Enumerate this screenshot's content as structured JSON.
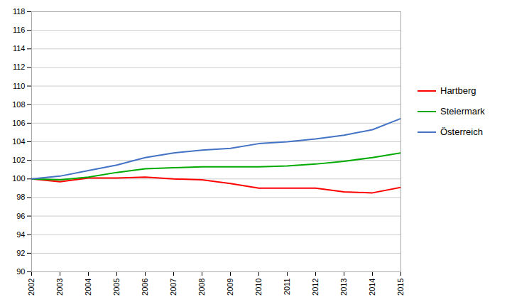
{
  "chart_data": {
    "type": "line",
    "x": [
      2002,
      2003,
      2004,
      2005,
      2006,
      2007,
      2008,
      2009,
      2010,
      2011,
      2012,
      2013,
      2014,
      2015
    ],
    "series": [
      {
        "name": "Hartberg",
        "color": "#ff0000",
        "values": [
          100.0,
          99.7,
          100.1,
          100.1,
          100.2,
          100.0,
          99.9,
          99.5,
          99.0,
          99.0,
          99.0,
          98.6,
          98.5,
          99.1
        ]
      },
      {
        "name": "Steiermark",
        "color": "#00aa00",
        "values": [
          100.0,
          99.9,
          100.2,
          100.7,
          101.1,
          101.2,
          101.3,
          101.3,
          101.3,
          101.4,
          101.6,
          101.9,
          102.3,
          102.8
        ]
      },
      {
        "name": "Österreich",
        "color": "#4472c4",
        "values": [
          100.0,
          100.3,
          100.9,
          101.5,
          102.3,
          102.8,
          103.1,
          103.3,
          103.8,
          104.0,
          104.3,
          104.7,
          105.3,
          106.5
        ]
      }
    ],
    "xlim": [
      2002,
      2015
    ],
    "xticks": [
      2002,
      2003,
      2004,
      2005,
      2006,
      2007,
      2008,
      2009,
      2010,
      2011,
      2012,
      2013,
      2014,
      2015
    ],
    "ylim": [
      90,
      118
    ],
    "yticks": [
      90,
      92,
      94,
      96,
      98,
      100,
      102,
      104,
      106,
      108,
      110,
      112,
      114,
      116,
      118
    ],
    "grid": true,
    "legend": "right"
  }
}
